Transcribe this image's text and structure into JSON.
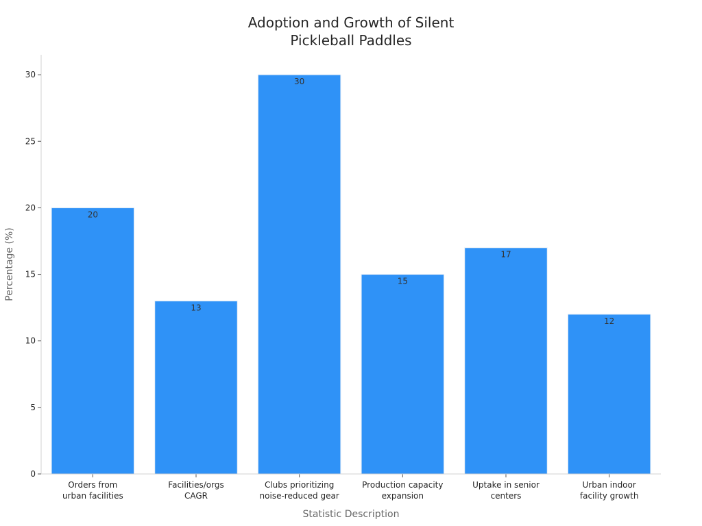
{
  "chart_data": {
    "type": "bar",
    "title_lines": [
      "Adoption and Growth of Silent",
      "Pickleball Paddles"
    ],
    "xlabel": "Statistic Description",
    "ylabel": "Percentage (%)",
    "ylim": [
      0,
      31.5
    ],
    "yticks": [
      0,
      5,
      10,
      15,
      20,
      25,
      30
    ],
    "categories": [
      [
        "Orders from",
        "urban facilities"
      ],
      [
        "Facilities/orgs",
        "CAGR"
      ],
      [
        "Clubs prioritizing",
        "noise-reduced gear"
      ],
      [
        "Production capacity",
        "expansion"
      ],
      [
        "Uptake in senior",
        "centers"
      ],
      [
        "Urban indoor",
        "facility growth"
      ]
    ],
    "values": [
      20,
      13,
      30,
      15,
      17,
      12
    ],
    "data_labels": [
      "20",
      "13",
      "30",
      "15",
      "17",
      "12"
    ],
    "bar_color": "#2f92f7",
    "bar_edge_color": "#e6eef7",
    "grid": false,
    "legend": "none"
  }
}
